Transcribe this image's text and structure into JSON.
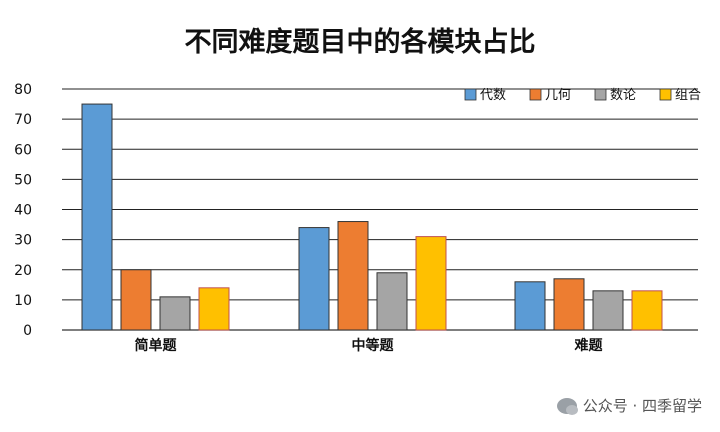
{
  "chart_data": {
    "type": "bar",
    "title": "不同难度题目中的各模块占比",
    "categories": [
      "简单题",
      "中等题",
      "难题"
    ],
    "series": [
      {
        "name": "代数",
        "color": "#5b9bd5",
        "values": [
          75,
          34,
          16
        ]
      },
      {
        "name": "几何",
        "color": "#ed7d31",
        "values": [
          20,
          36,
          17
        ]
      },
      {
        "name": "数论",
        "color": "#a5a5a5",
        "values": [
          11,
          19,
          13
        ]
      },
      {
        "name": "组合",
        "color": "#ffc000",
        "values": [
          14,
          31,
          13
        ]
      }
    ],
    "ylim": [
      0,
      80
    ],
    "yticks": [
      0,
      10,
      20,
      30,
      40,
      50,
      60,
      70,
      80
    ],
    "grid": true,
    "legend": "top-right",
    "xlabel": "",
    "ylabel": ""
  },
  "watermark": {
    "text": "公众号 · 四季留学",
    "icon": "wechat-icon"
  }
}
